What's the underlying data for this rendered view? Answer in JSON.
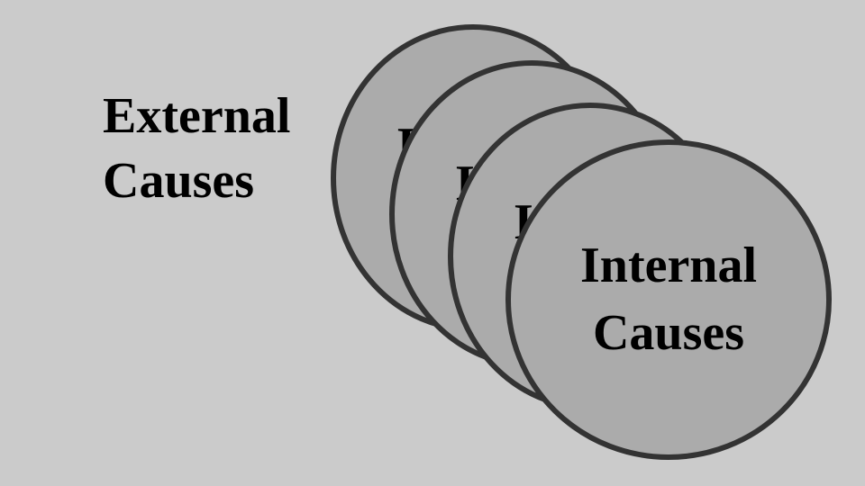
{
  "external": {
    "line1": "External",
    "line2": "Causes"
  },
  "internal": {
    "line1": "Internal",
    "line2": "Causes"
  },
  "colors": {
    "background": "#cbcbcb",
    "disc_fill": "#ababab",
    "disc_stroke": "#333333",
    "text": "#000000"
  }
}
